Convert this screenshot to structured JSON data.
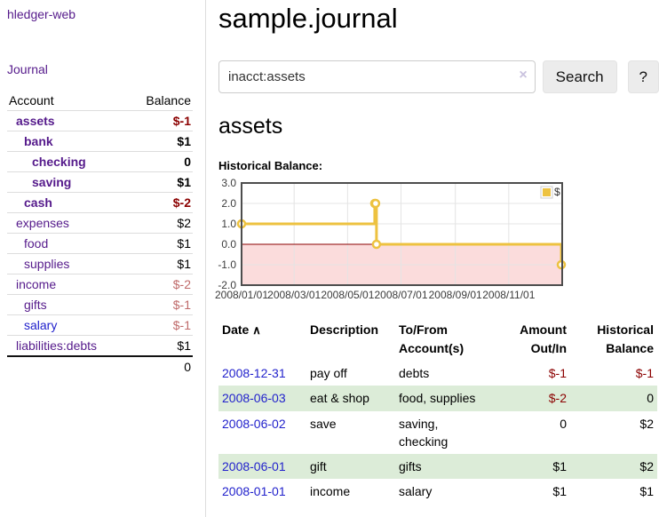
{
  "app": {
    "brand": "hledger-web"
  },
  "ui_colors": {
    "link_purple": "#551a8b",
    "link_blue": "#2222cc",
    "negative_strong": "#8b0000",
    "negative_faded": "#bf6a6a",
    "row_green": "#dcecd8"
  },
  "sidebar": {
    "journal_label": "Journal",
    "accounts": {
      "header_account": "Account",
      "header_balance": "Balance",
      "rows": [
        {
          "name": "assets",
          "indent": 0,
          "balance": "$-1",
          "name_class": "bold",
          "bal_class": "bold neg"
        },
        {
          "name": "bank",
          "indent": 1,
          "balance": "$1",
          "name_class": "bold",
          "bal_class": "bold"
        },
        {
          "name": "checking",
          "indent": 2,
          "balance": "0",
          "name_class": "bold",
          "bal_class": "bold"
        },
        {
          "name": "saving",
          "indent": 2,
          "balance": "$1",
          "name_class": "bold",
          "bal_class": "bold"
        },
        {
          "name": "cash",
          "indent": 1,
          "balance": "$-2",
          "name_class": "bold",
          "bal_class": "bold neg"
        },
        {
          "name": "expenses",
          "indent": 0,
          "balance": "$2"
        },
        {
          "name": "food",
          "indent": 1,
          "balance": "$1"
        },
        {
          "name": "supplies",
          "indent": 1,
          "balance": "$1"
        },
        {
          "name": "income",
          "indent": 0,
          "balance": "$-2",
          "bal_class": "negfade"
        },
        {
          "name": "gifts",
          "indent": 1,
          "balance": "$-1",
          "bal_class": "negfade"
        },
        {
          "name": "salary",
          "indent": 1,
          "balance": "$-1",
          "name_class": "blue",
          "bal_class": "negfade"
        },
        {
          "name": "liabilities:debts",
          "indent": 0,
          "balance": "$1"
        }
      ],
      "total": "0"
    }
  },
  "main": {
    "title": "sample.journal",
    "search": {
      "value": "inacct:assets",
      "clear_icon": "×",
      "search_label": "Search",
      "help_label": "?"
    },
    "account_heading": "assets",
    "chart_heading": "Historical Balance:"
  },
  "chart_data": {
    "type": "line",
    "step": true,
    "title": "Historical Balance",
    "series": [
      {
        "name": "$",
        "points": [
          [
            "2008-01-01",
            1
          ],
          [
            "2008-06-01",
            2
          ],
          [
            "2008-06-02",
            2
          ],
          [
            "2008-06-03",
            0
          ],
          [
            "2008-12-31",
            -1
          ]
        ]
      }
    ],
    "x_ticks": [
      "2008/01/01",
      "2008/03/01",
      "2008/05/01",
      "2008/07/01",
      "2008/09/01",
      "2008/11/01"
    ],
    "y_tick_labels": [
      "3.0",
      "2.0",
      "1.0",
      "0.0",
      "-1.0",
      "-2.0"
    ],
    "ylim": [
      -2,
      3
    ],
    "xlim": [
      "2008-01-01",
      "2009-01-01"
    ],
    "legend": {
      "label": "$",
      "position": "top-right"
    },
    "colors": {
      "line": "#edc240",
      "negative_region": "#fbdcdc",
      "zero_line": "#8b0000",
      "grid": "#e4e4e4",
      "border": "#4d4d4d"
    }
  },
  "register": {
    "headers": {
      "date": "Date",
      "sort": "∧",
      "description": "Description",
      "accounts": "To/From Account(s)",
      "amount": "Amount Out/In",
      "balance": "Historical Balance"
    },
    "rows": [
      {
        "date": "2008-12-31",
        "description": "pay off",
        "accounts": "debts",
        "amount": "$-1",
        "balance": "$-1",
        "amount_class": "neg",
        "balance_class": "neg"
      },
      {
        "date": "2008-06-03",
        "description": "eat & shop",
        "accounts": "food, supplies",
        "amount": "$-2",
        "balance": "0",
        "amount_class": "neg"
      },
      {
        "date": "2008-06-02",
        "description": "save",
        "accounts": "saving, checking",
        "amount": "0",
        "balance": "$2"
      },
      {
        "date": "2008-06-01",
        "description": "gift",
        "accounts": "gifts",
        "amount": "$1",
        "balance": "$2"
      },
      {
        "date": "2008-01-01",
        "description": "income",
        "accounts": "salary",
        "amount": "$1",
        "balance": "$1"
      }
    ]
  }
}
